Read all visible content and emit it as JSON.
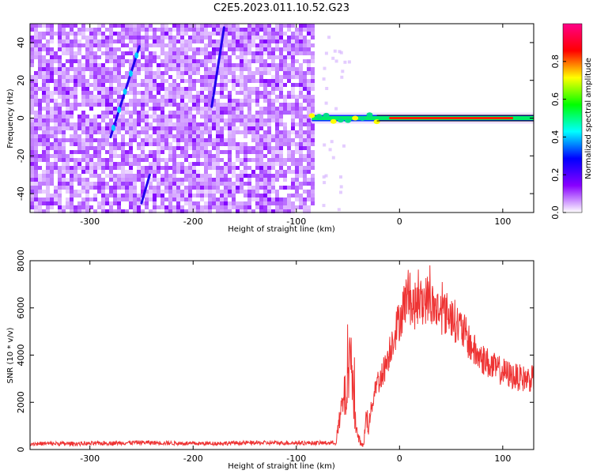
{
  "title": "C2E5.2023.011.10.52.G23",
  "chart_data": [
    {
      "type": "heatmap",
      "xlabel": "Height of straight line (km)",
      "ylabel": "Frequency (Hz)",
      "xlim": [
        -358,
        130
      ],
      "ylim": [
        -50,
        50
      ],
      "x_ticks": [
        -300,
        -200,
        -100,
        0,
        100
      ],
      "y_ticks": [
        -40,
        -20,
        0,
        20,
        40
      ],
      "colorbar": {
        "label": "Normalized spectral amplitude",
        "range": [
          0,
          1
        ],
        "ticks": [
          "0.0",
          "0.2",
          "0.4",
          "0.6",
          "0.8"
        ],
        "colors": [
          "#ffffff",
          "#8800ff",
          "#0000ff",
          "#00ffff",
          "#00ff00",
          "#ffff00",
          "#ff0000",
          "#ff0088"
        ]
      },
      "features": {
        "noise_region_x": [
          -358,
          -85
        ],
        "signal_line_freq": 0,
        "signal_onset_x": -85,
        "streaks": [
          {
            "x": [
              -280,
              -252
            ],
            "freq": [
              -10,
              38
            ]
          },
          {
            "x": [
              -182,
              -170
            ],
            "freq": [
              6,
              48
            ]
          },
          {
            "x": [
              -250,
              -242
            ],
            "freq": [
              -45,
              -30
            ]
          }
        ]
      }
    },
    {
      "type": "line",
      "xlabel": "Height of straight line (km)",
      "ylabel": "SNR (10 * v/v)",
      "xlim": [
        -358,
        130
      ],
      "ylim": [
        0,
        8000
      ],
      "x_ticks": [
        -300,
        -200,
        -100,
        0,
        100
      ],
      "y_ticks": [
        0,
        2000,
        4000,
        6000,
        8000
      ],
      "series": [
        {
          "color": "#ee3333",
          "points": [
            [
              -358,
              250
            ],
            [
              -300,
              250
            ],
            [
              -250,
              300
            ],
            [
              -200,
              250
            ],
            [
              -150,
              280
            ],
            [
              -100,
              280
            ],
            [
              -62,
              280
            ],
            [
              -58,
              1200
            ],
            [
              -55,
              2000
            ],
            [
              -50,
              2500
            ],
            [
              -47,
              4200
            ],
            [
              -45,
              2500
            ],
            [
              -42,
              800
            ],
            [
              -38,
              300
            ],
            [
              -35,
              150
            ],
            [
              -32,
              1500
            ],
            [
              -30,
              1000
            ],
            [
              -27,
              1800
            ],
            [
              -23,
              2800
            ],
            [
              -18,
              3000
            ],
            [
              -12,
              3800
            ],
            [
              -6,
              4800
            ],
            [
              0,
              5500
            ],
            [
              5,
              6200
            ],
            [
              8,
              6700
            ],
            [
              12,
              6000
            ],
            [
              20,
              6200
            ],
            [
              27,
              6400
            ],
            [
              34,
              6000
            ],
            [
              42,
              5800
            ],
            [
              50,
              5700
            ],
            [
              56,
              5300
            ],
            [
              62,
              5000
            ],
            [
              68,
              4500
            ],
            [
              75,
              4000
            ],
            [
              82,
              3800
            ],
            [
              90,
              3500
            ],
            [
              100,
              3300
            ],
            [
              110,
              3100
            ],
            [
              120,
              3000
            ],
            [
              130,
              3000
            ]
          ]
        }
      ]
    }
  ]
}
